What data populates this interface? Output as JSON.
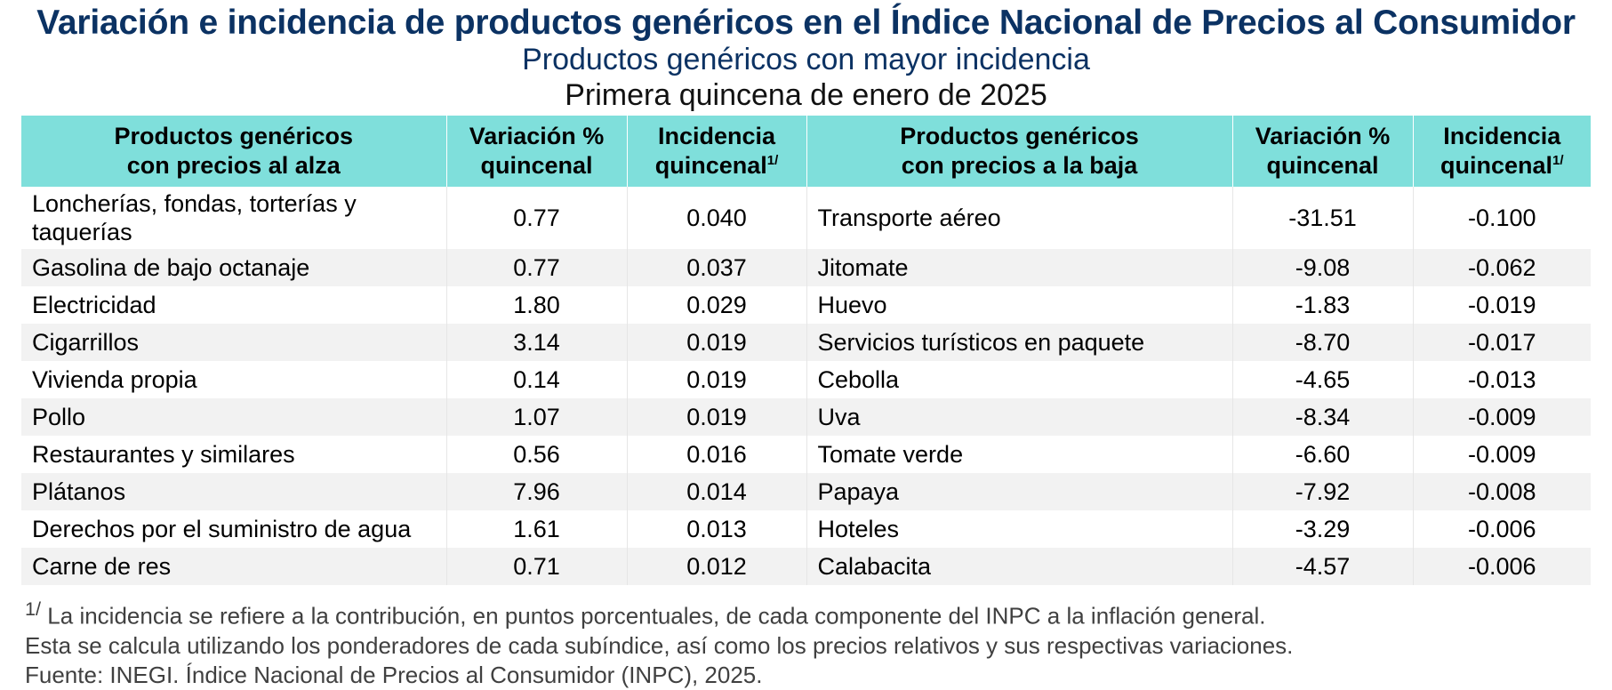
{
  "title": "Variación e incidencia de productos genéricos en el Índice Nacional de Precios al Consumidor",
  "subtitle": "Productos genéricos con mayor incidencia",
  "period": "Primera quincena de enero de 2025",
  "headers": {
    "alza_l1": "Productos genéricos",
    "alza_l2": "con precios al alza",
    "var_l1": "Variación %",
    "var_l2": "quincenal",
    "inc_l1": "Incidencia",
    "inc_l2": "quincenal",
    "inc_sup": "1/",
    "baja_l1": "Productos genéricos",
    "baja_l2": "con precios a la baja"
  },
  "rows": [
    {
      "up_name": "Loncherías, fondas, torterías y taquerías",
      "up_var": "0.77",
      "up_inc": "0.040",
      "down_name": "Transporte aéreo",
      "down_var": "-31.51",
      "down_inc": "-0.100"
    },
    {
      "up_name": "Gasolina de bajo octanaje",
      "up_var": "0.77",
      "up_inc": "0.037",
      "down_name": "Jitomate",
      "down_var": "-9.08",
      "down_inc": "-0.062"
    },
    {
      "up_name": "Electricidad",
      "up_var": "1.80",
      "up_inc": "0.029",
      "down_name": "Huevo",
      "down_var": "-1.83",
      "down_inc": "-0.019"
    },
    {
      "up_name": "Cigarrillos",
      "up_var": "3.14",
      "up_inc": "0.019",
      "down_name": "Servicios turísticos en paquete",
      "down_var": "-8.70",
      "down_inc": "-0.017"
    },
    {
      "up_name": "Vivienda propia",
      "up_var": "0.14",
      "up_inc": "0.019",
      "down_name": "Cebolla",
      "down_var": "-4.65",
      "down_inc": "-0.013"
    },
    {
      "up_name": "Pollo",
      "up_var": "1.07",
      "up_inc": "0.019",
      "down_name": "Uva",
      "down_var": "-8.34",
      "down_inc": "-0.009"
    },
    {
      "up_name": "Restaurantes y similares",
      "up_var": "0.56",
      "up_inc": "0.016",
      "down_name": "Tomate verde",
      "down_var": "-6.60",
      "down_inc": "-0.009"
    },
    {
      "up_name": "Plátanos",
      "up_var": "7.96",
      "up_inc": "0.014",
      "down_name": "Papaya",
      "down_var": "-7.92",
      "down_inc": "-0.008"
    },
    {
      "up_name": "Derechos por el suministro de agua",
      "up_var": "1.61",
      "up_inc": "0.013",
      "down_name": "Hoteles",
      "down_var": "-3.29",
      "down_inc": "-0.006"
    },
    {
      "up_name": "Carne de res",
      "up_var": "0.71",
      "up_inc": "0.012",
      "down_name": "Calabacita",
      "down_var": "-4.57",
      "down_inc": "-0.006"
    }
  ],
  "notes": {
    "sup": "1/",
    "line1": "La incidencia se refiere a la contribución, en puntos porcentuales, de cada componente del INPC a la inflación general.",
    "line2": "Esta se calcula utilizando los ponderadores de cada subíndice, así como los precios relativos y sus respectivas variaciones.",
    "line3": "Fuente: INEGI. Índice Nacional de Precios al Consumidor (INPC), 2025."
  },
  "colors": {
    "title": "#0b3263",
    "header_bg": "#7fdfdb",
    "row_alt_bg": "#f2f2f2"
  }
}
